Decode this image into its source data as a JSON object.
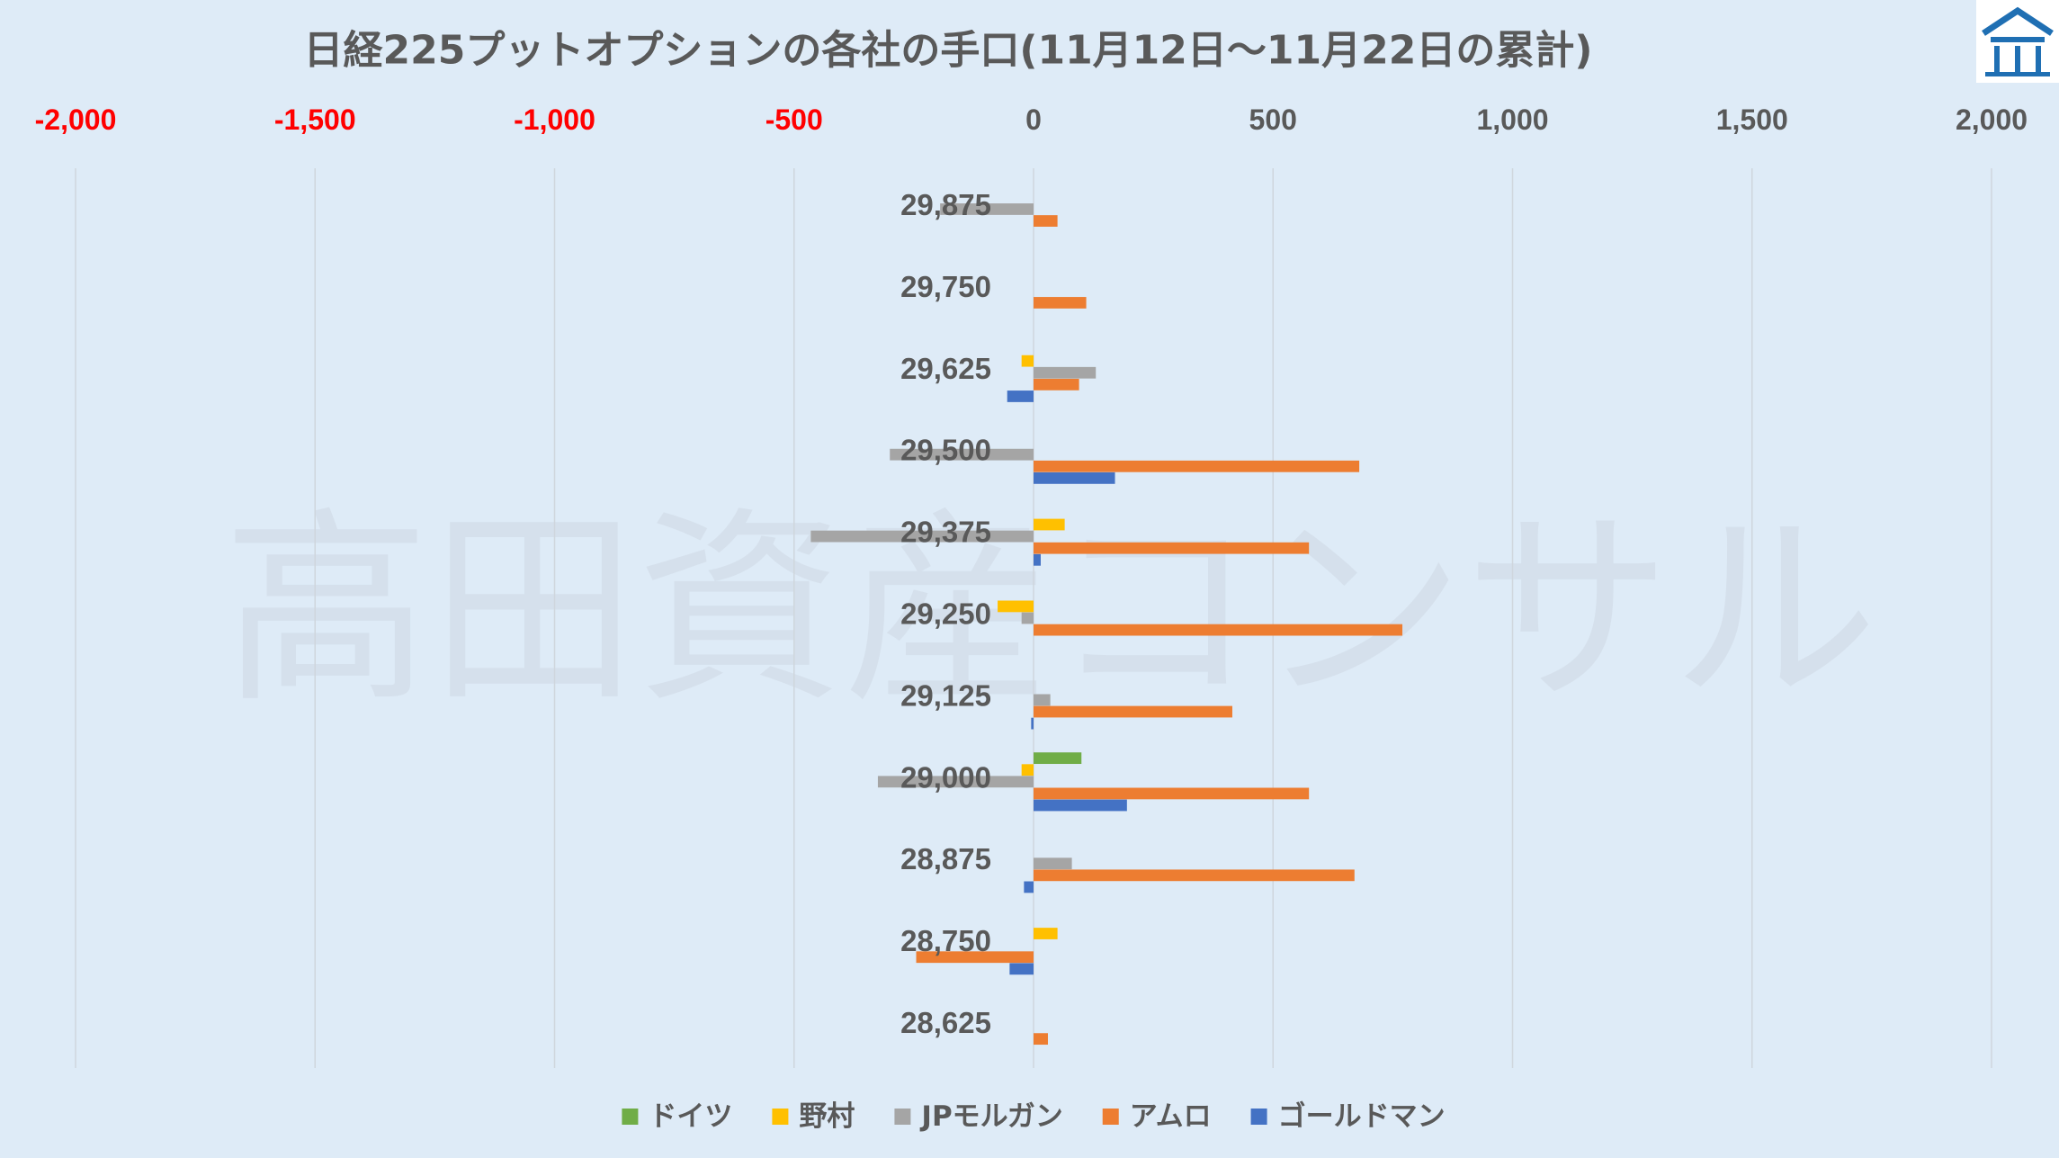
{
  "chart_data": {
    "type": "bar",
    "orientation": "horizontal",
    "title": "日経225プットオプションの各社の手口(11月12日～11月22日の累計)",
    "xlabel": "",
    "ylabel": "",
    "x_axis_position": "top",
    "xlim": [
      -2000,
      2000
    ],
    "x_ticks": [
      -2000,
      -1500,
      -1000,
      -500,
      0,
      500,
      1000,
      1500,
      2000
    ],
    "x_tick_labels": [
      "-2,000",
      "-1,500",
      "-1,000",
      "-500",
      "0",
      "500",
      "1,000",
      "1,500",
      "2,000"
    ],
    "negative_tick_color": "#ff0000",
    "tick_color": "#595959",
    "grid": true,
    "legend_position": "bottom",
    "categories": [
      "29,875",
      "29,750",
      "29,625",
      "29,500",
      "29,375",
      "29,250",
      "29,125",
      "29,000",
      "28,875",
      "28,750",
      "28,625"
    ],
    "series": [
      {
        "name": "ドイツ",
        "color": "#70ad47",
        "values": [
          null,
          null,
          null,
          null,
          null,
          null,
          null,
          100,
          null,
          null,
          null
        ]
      },
      {
        "name": "野村",
        "color": "#ffc000",
        "values": [
          null,
          null,
          -25,
          null,
          65,
          -75,
          null,
          -25,
          null,
          50,
          null
        ]
      },
      {
        "name": "JPモルガン",
        "color": "#a5a5a5",
        "values": [
          -195,
          null,
          130,
          -300,
          -465,
          -25,
          35,
          -325,
          80,
          null,
          null
        ]
      },
      {
        "name": "アムロ",
        "color": "#ed7d31",
        "values": [
          50,
          110,
          95,
          680,
          575,
          770,
          415,
          575,
          670,
          -245,
          30
        ]
      },
      {
        "name": "ゴールドマン",
        "color": "#4472c4",
        "values": [
          null,
          null,
          -55,
          170,
          15,
          null,
          -5,
          195,
          -20,
          -50,
          null
        ]
      }
    ]
  },
  "watermark": "高田資産コンサル",
  "logo": {
    "icon": "house-logo-icon",
    "color": "#1f6fb3"
  },
  "colors": {
    "background": "#deebf7",
    "title": "#595959",
    "gridline": "#cfd6dd"
  }
}
